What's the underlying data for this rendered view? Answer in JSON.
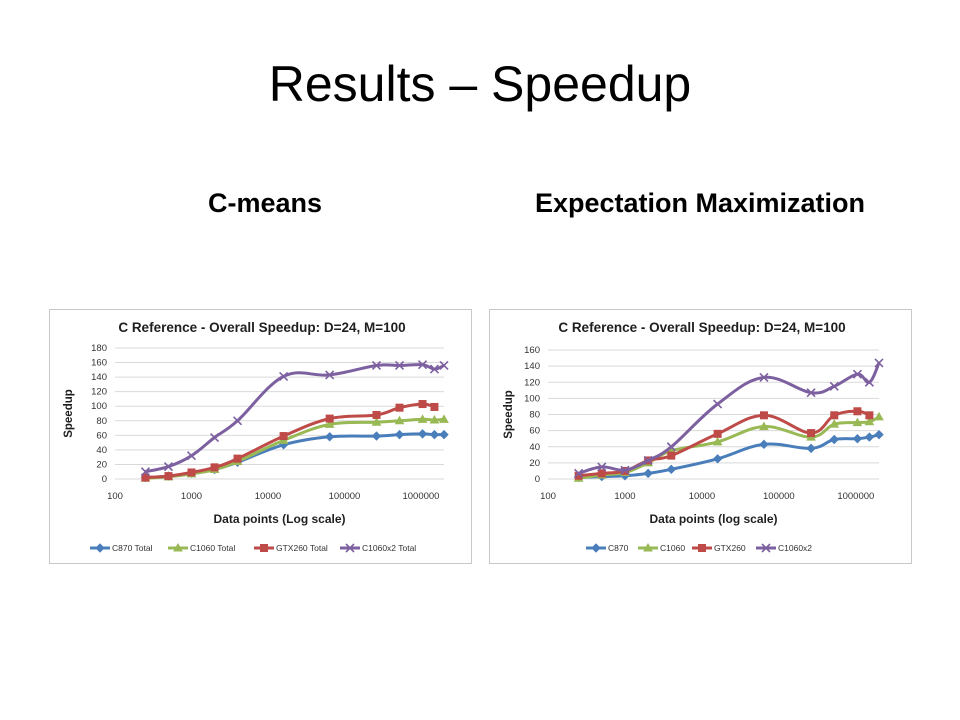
{
  "slide": {
    "title": "Results – Speedup",
    "left_heading": "C-means",
    "right_heading": "Expectation Maximization"
  },
  "chart_data": [
    {
      "type": "line",
      "title": "C Reference - Overall Speedup: D=24, M=100",
      "xlabel": "Data points (Log scale)",
      "ylabel": "Speedup",
      "x_scale": "log",
      "xlim": [
        100,
        2000000
      ],
      "ylim": [
        0,
        180
      ],
      "yticks": [
        0,
        20,
        40,
        60,
        80,
        100,
        120,
        140,
        160,
        180
      ],
      "xticks": [
        100,
        1000,
        10000,
        100000,
        1000000
      ],
      "xtick_labels": [
        "100",
        "1000",
        "10000",
        "100000",
        "1000000"
      ],
      "grid": true,
      "legend_position": "bottom",
      "series": [
        {
          "name": "C870 Total",
          "color": "#4a7ebb",
          "marker": "diamond",
          "x": [
            250,
            500,
            1000,
            2000,
            4000,
            16000,
            64000,
            262144,
            524288,
            1048576,
            1500000,
            2000000
          ],
          "values": [
            2,
            4,
            8,
            13,
            23,
            47,
            58,
            59,
            61,
            62,
            61,
            61
          ]
        },
        {
          "name": "C1060 Total",
          "color": "#98b954",
          "marker": "triangle",
          "x": [
            250,
            500,
            1000,
            2000,
            4000,
            16000,
            64000,
            262144,
            524288,
            1048576,
            1500000,
            2000000
          ],
          "values": [
            1,
            3,
            7,
            13,
            24,
            53,
            75,
            78,
            80,
            82,
            81,
            82
          ]
        },
        {
          "name": "GTX260 Total",
          "color": "#be4b48",
          "marker": "square",
          "x": [
            250,
            500,
            1000,
            2000,
            4000,
            16000,
            64000,
            262144,
            524288,
            1048576,
            1500000
          ],
          "values": [
            2,
            4,
            9,
            16,
            28,
            59,
            83,
            88,
            98,
            103,
            99
          ]
        },
        {
          "name": "C1060x2 Total",
          "color": "#7d60a0",
          "marker": "x",
          "x": [
            250,
            500,
            1000,
            2000,
            4000,
            16000,
            64000,
            262144,
            524288,
            1048576,
            1500000,
            2000000
          ],
          "values": [
            10,
            17,
            32,
            57,
            80,
            141,
            143,
            156,
            156,
            157,
            151,
            156
          ]
        }
      ]
    },
    {
      "type": "line",
      "title": "C Reference - Overall Speedup: D=24, M=100",
      "xlabel": "Data points (log scale)",
      "ylabel": "Speedup",
      "x_scale": "log",
      "xlim": [
        100,
        2000000
      ],
      "ylim": [
        0,
        160
      ],
      "yticks": [
        0,
        20,
        40,
        60,
        80,
        100,
        120,
        140,
        160
      ],
      "xticks": [
        100,
        1000,
        10000,
        100000,
        1000000
      ],
      "xtick_labels": [
        "100",
        "1000",
        "10000",
        "100000",
        "1000000"
      ],
      "grid": true,
      "legend_position": "bottom",
      "series": [
        {
          "name": "C870",
          "color": "#4a7ebb",
          "marker": "diamond",
          "x": [
            250,
            500,
            1000,
            2000,
            4000,
            16000,
            64000,
            262144,
            524288,
            1048576,
            1500000,
            2000000
          ],
          "values": [
            2,
            3,
            4,
            7,
            12,
            25,
            43,
            38,
            49,
            50,
            52,
            55
          ]
        },
        {
          "name": "C1060",
          "color": "#98b954",
          "marker": "triangle",
          "x": [
            250,
            500,
            1000,
            2000,
            4000,
            16000,
            64000,
            262144,
            524288,
            1048576,
            1500000,
            2000000
          ],
          "values": [
            1,
            5,
            8,
            20,
            35,
            46,
            65,
            52,
            68,
            70,
            71,
            77
          ]
        },
        {
          "name": "GTX260",
          "color": "#be4b48",
          "marker": "square",
          "x": [
            250,
            500,
            1000,
            2000,
            4000,
            16000,
            64000,
            262144,
            524288,
            1048576,
            1500000
          ],
          "values": [
            4,
            7,
            10,
            23,
            29,
            56,
            79,
            57,
            79,
            84,
            79
          ]
        },
        {
          "name": "C1060x2",
          "color": "#7d60a0",
          "marker": "x",
          "x": [
            250,
            500,
            1000,
            2000,
            4000,
            16000,
            64000,
            262144,
            524288,
            1048576,
            1500000,
            2000000
          ],
          "values": [
            7,
            15,
            11,
            23,
            40,
            93,
            126,
            107,
            115,
            130,
            120,
            144
          ]
        }
      ]
    }
  ]
}
